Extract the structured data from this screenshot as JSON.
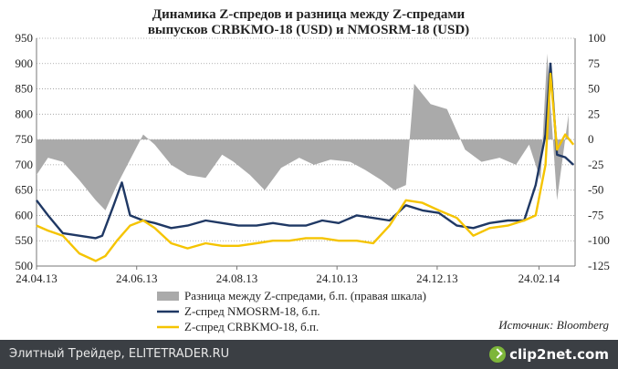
{
  "chart_data": {
    "type": "line",
    "title": "Динамика Z-спредов и разница между Z-спредами\nвыпусков CRBKMO-18 (USD) и NMOSRM-18 (USD)",
    "x_tick_labels": [
      "24.04.13",
      "24.06.13",
      "24.08.13",
      "24.10.13",
      "24.12.13",
      "24.02.14"
    ],
    "left_axis": {
      "ylim": [
        500,
        950
      ],
      "ticks": [
        500,
        550,
        600,
        650,
        700,
        750,
        800,
        850,
        900,
        950
      ]
    },
    "right_axis": {
      "ylim": [
        -125,
        100
      ],
      "ticks": [
        -125,
        -100,
        -75,
        -50,
        -25,
        0,
        25,
        50,
        75,
        100
      ]
    },
    "grid": true,
    "legend_position": "bottom",
    "source": "Источник: Bloomberg",
    "colors": {
      "diff": "#aaaaaa",
      "nmosrm": "#1f3864",
      "crbkmo": "#f5c400"
    },
    "series": [
      {
        "name": "Разница между Z-спредами, б.п. (правая шкала)",
        "type": "area",
        "axis": "right",
        "x": [
          "2013-04-24",
          "2013-05-01",
          "2013-05-10",
          "2013-05-20",
          "2013-05-30",
          "2013-06-05",
          "2013-06-12",
          "2013-06-20",
          "2013-06-28",
          "2013-07-05",
          "2013-07-15",
          "2013-07-25",
          "2013-08-05",
          "2013-08-15",
          "2013-08-22",
          "2013-09-01",
          "2013-09-10",
          "2013-09-20",
          "2013-10-01",
          "2013-10-10",
          "2013-10-20",
          "2013-11-01",
          "2013-11-10",
          "2013-11-20",
          "2013-11-28",
          "2013-12-05",
          "2013-12-10",
          "2013-12-20",
          "2013-12-30",
          "2014-01-10",
          "2014-01-20",
          "2014-01-31",
          "2014-02-10",
          "2014-02-18",
          "2014-02-25",
          "2014-03-01",
          "2014-03-07",
          "2014-03-14"
        ],
        "values": [
          -35,
          -18,
          -22,
          -40,
          -60,
          -70,
          -45,
          -20,
          5,
          -5,
          -25,
          -35,
          -38,
          -15,
          -22,
          -35,
          -50,
          -28,
          -18,
          -25,
          -20,
          -22,
          -30,
          -40,
          -50,
          -45,
          55,
          35,
          30,
          -10,
          -22,
          -18,
          -25,
          -5,
          -40,
          85,
          -60,
          25
        ]
      },
      {
        "name": "Z-спред NMOSRM-18, б.п.",
        "type": "line",
        "axis": "left",
        "x": [
          "2013-04-24",
          "2013-05-01",
          "2013-05-10",
          "2013-05-20",
          "2013-05-30",
          "2013-06-03",
          "2013-06-10",
          "2013-06-15",
          "2013-06-20",
          "2013-06-28",
          "2013-07-05",
          "2013-07-15",
          "2013-07-25",
          "2013-08-05",
          "2013-08-15",
          "2013-08-25",
          "2013-09-05",
          "2013-09-15",
          "2013-09-25",
          "2013-10-05",
          "2013-10-15",
          "2013-10-25",
          "2013-11-05",
          "2013-11-15",
          "2013-11-25",
          "2013-12-05",
          "2013-12-15",
          "2013-12-25",
          "2014-01-05",
          "2014-01-15",
          "2014-01-25",
          "2014-02-05",
          "2014-02-15",
          "2014-02-22",
          "2014-02-28",
          "2014-03-03",
          "2014-03-07",
          "2014-03-12",
          "2014-03-17"
        ],
        "values": [
          630,
          600,
          565,
          560,
          555,
          560,
          620,
          665,
          600,
          590,
          585,
          575,
          580,
          590,
          585,
          580,
          580,
          585,
          580,
          580,
          590,
          585,
          600,
          595,
          590,
          620,
          610,
          605,
          580,
          575,
          585,
          590,
          590,
          660,
          760,
          900,
          720,
          715,
          700
        ]
      },
      {
        "name": "Z-спред CRBKMO-18, б.п.",
        "type": "line",
        "axis": "left",
        "x": [
          "2013-04-24",
          "2013-05-01",
          "2013-05-10",
          "2013-05-20",
          "2013-05-30",
          "2013-06-05",
          "2013-06-12",
          "2013-06-20",
          "2013-06-28",
          "2013-07-05",
          "2013-07-15",
          "2013-07-25",
          "2013-08-05",
          "2013-08-15",
          "2013-08-25",
          "2013-09-05",
          "2013-09-15",
          "2013-09-25",
          "2013-10-05",
          "2013-10-15",
          "2013-10-25",
          "2013-11-05",
          "2013-11-15",
          "2013-11-25",
          "2013-12-05",
          "2013-12-15",
          "2013-12-25",
          "2014-01-05",
          "2014-01-15",
          "2014-01-25",
          "2014-02-05",
          "2014-02-15",
          "2014-02-22",
          "2014-02-28",
          "2014-03-03",
          "2014-03-07",
          "2014-03-12",
          "2014-03-17"
        ],
        "values": [
          580,
          570,
          560,
          525,
          510,
          520,
          550,
          580,
          590,
          575,
          545,
          535,
          545,
          540,
          540,
          545,
          550,
          550,
          555,
          555,
          550,
          550,
          545,
          580,
          630,
          625,
          610,
          595,
          560,
          575,
          580,
          590,
          600,
          700,
          880,
          730,
          760,
          740
        ]
      }
    ]
  },
  "footer": {
    "site": "Элитный Трейдер, ELITETRADER.RU",
    "brand": "clip2net.com"
  }
}
